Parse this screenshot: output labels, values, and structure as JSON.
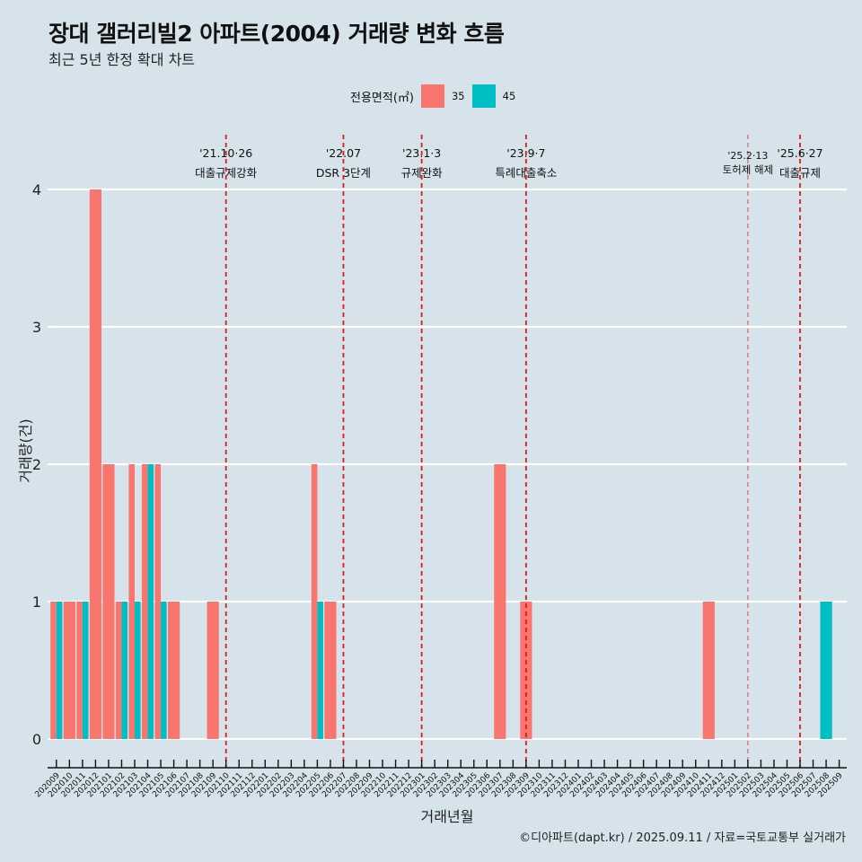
{
  "header": {
    "title": "장대 갤러리빌2 아파트(2004) 거래량 변화 흐름",
    "subtitle": "최근 5년 한정 확대 차트"
  },
  "legend": {
    "title": "전용면적(㎡)",
    "items": [
      {
        "label": "35",
        "color": "#f8766d"
      },
      {
        "label": "45",
        "color": "#00bfc4"
      }
    ]
  },
  "footer": "©디아파트(dapt.kr) / 2025.09.11 / 자료=국토교통부 실거래가",
  "chart_data": {
    "type": "bar",
    "barmode": "dodge",
    "title": "장대 갤러리빌2 아파트(2004) 거래량 변화 흐름",
    "subtitle": "최근 5년 한정 확대 차트",
    "xlabel": "거래년월",
    "ylabel": "거래량(건)",
    "ylim": [
      0,
      4
    ],
    "yticks": [
      0,
      1,
      2,
      3,
      4
    ],
    "grid": "horizontal",
    "legend_position": "top",
    "categories": [
      "202009",
      "202010",
      "202011",
      "202012",
      "202101",
      "202102",
      "202103",
      "202104",
      "202105",
      "202106",
      "202107",
      "202108",
      "202109",
      "202110",
      "202111",
      "202112",
      "202201",
      "202202",
      "202203",
      "202204",
      "202205",
      "202206",
      "202207",
      "202208",
      "202209",
      "202210",
      "202211",
      "202212",
      "202301",
      "202302",
      "202303",
      "202304",
      "202305",
      "202306",
      "202307",
      "202308",
      "202309",
      "202310",
      "202311",
      "202312",
      "202401",
      "202402",
      "202403",
      "202404",
      "202405",
      "202406",
      "202407",
      "202408",
      "202409",
      "202410",
      "202411",
      "202412",
      "202501",
      "202502",
      "202503",
      "202504",
      "202505",
      "202506",
      "202507",
      "202508",
      "202509"
    ],
    "series": [
      {
        "name": "35",
        "color": "#f8766d",
        "points": [
          {
            "x": "202009",
            "y": 1
          },
          {
            "x": "202010",
            "y": 1
          },
          {
            "x": "202011",
            "y": 1
          },
          {
            "x": "202012",
            "y": 4
          },
          {
            "x": "202101",
            "y": 2
          },
          {
            "x": "202102",
            "y": 1
          },
          {
            "x": "202103",
            "y": 2
          },
          {
            "x": "202104",
            "y": 2
          },
          {
            "x": "202105",
            "y": 2
          },
          {
            "x": "202106",
            "y": 1
          },
          {
            "x": "202109",
            "y": 1
          },
          {
            "x": "202205",
            "y": 2
          },
          {
            "x": "202206",
            "y": 1
          },
          {
            "x": "202307",
            "y": 2
          },
          {
            "x": "202309",
            "y": 1
          },
          {
            "x": "202411",
            "y": 1
          }
        ]
      },
      {
        "name": "45",
        "color": "#00bfc4",
        "points": [
          {
            "x": "202009",
            "y": 1
          },
          {
            "x": "202011",
            "y": 1
          },
          {
            "x": "202102",
            "y": 1
          },
          {
            "x": "202103",
            "y": 1
          },
          {
            "x": "202104",
            "y": 2
          },
          {
            "x": "202105",
            "y": 1
          },
          {
            "x": "202205",
            "y": 1
          },
          {
            "x": "202508",
            "y": 1
          }
        ]
      }
    ],
    "annotations": [
      {
        "x": "202110",
        "date": "'21.10·26",
        "label": "대출규제강화",
        "style": "strong"
      },
      {
        "x": "202207",
        "date": "'22.07",
        "label": "DSR 3단계",
        "style": "strong"
      },
      {
        "x": "202301",
        "date": "'23.1·3",
        "label": "규제완화",
        "style": "strong"
      },
      {
        "x": "202309",
        "date": "'23.9·7",
        "label": "특례대출축소",
        "style": "strong"
      },
      {
        "x": "202502",
        "date": "'25.2·13",
        "label": "토허제 해제",
        "style": "light"
      },
      {
        "x": "202506",
        "date": "'25.6·27",
        "label": "대출규제",
        "style": "strong"
      }
    ]
  }
}
